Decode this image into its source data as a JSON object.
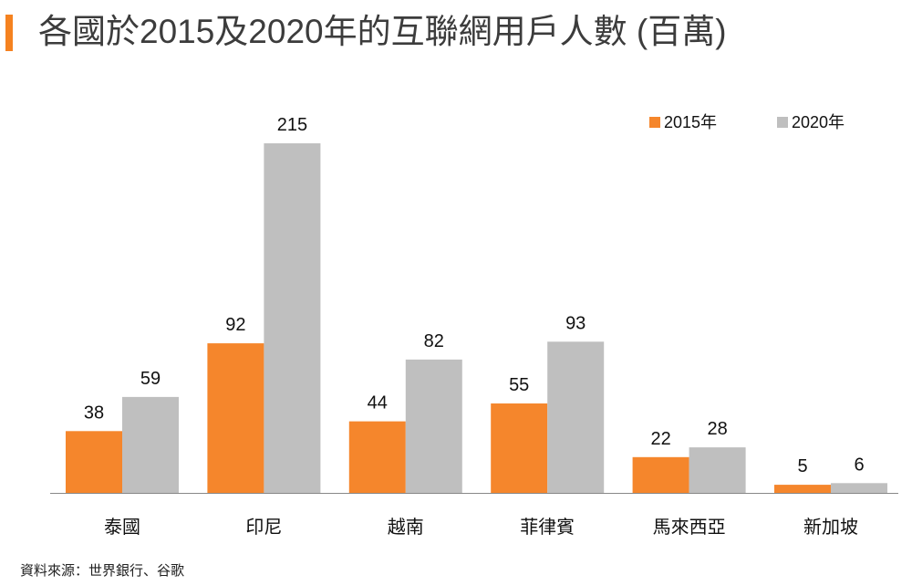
{
  "title": "各國於2015及2020年的互聯網用戶人數 (百萬)",
  "source": "資料來源：世界銀行、谷歌",
  "colors": {
    "accent": "#F58220",
    "series_2015": "#F5862C",
    "series_2020": "#BFBFBF",
    "baseline": "#888888"
  },
  "chart_data": {
    "type": "bar",
    "title": "各國於2015及2020年的互聯網用戶人數 (百萬)",
    "xlabel": "",
    "ylabel": "",
    "ylim": [
      0,
      215
    ],
    "grid": false,
    "legend_position": "top-right",
    "categories": [
      "泰國",
      "印尼",
      "越南",
      "菲律賓",
      "馬來西亞",
      "新加坡"
    ],
    "series": [
      {
        "name": "2015年",
        "values": [
          38,
          92,
          44,
          55,
          22,
          5
        ]
      },
      {
        "name": "2020年",
        "values": [
          59,
          215,
          82,
          93,
          28,
          6
        ]
      }
    ]
  }
}
